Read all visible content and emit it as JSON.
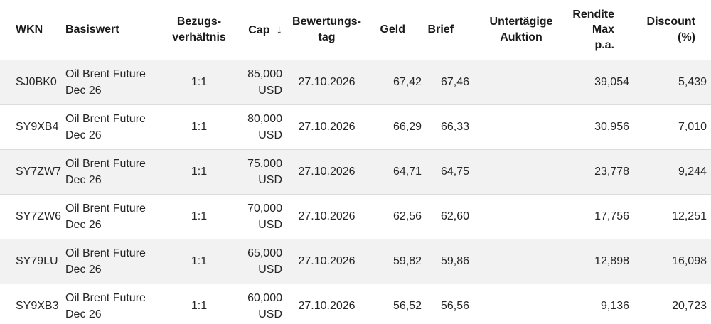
{
  "table": {
    "columns": {
      "wkn": "WKN",
      "basiswert": "Basiswert",
      "bezugsverhaeltnis": "Bezugs-\nverhältnis",
      "cap": "Cap",
      "bewertungstag": "Bewertungs-\ntag",
      "geld": "Geld",
      "brief": "Brief",
      "untertaegige_auktion": "Untertägige\nAuktion",
      "rendite_max_pa": "Rendite\nMax\np.a.",
      "discount_pct": "Discount\n(%)"
    },
    "sort": {
      "column": "Cap",
      "direction": "descending",
      "icon": "↓"
    },
    "rows": [
      {
        "wkn": "SJ0BK0",
        "basiswert": "Oil Brent Future\nDec 26",
        "bezugsverhaeltnis": "1:1",
        "cap": "85,000\nUSD",
        "bewertungstag": "27.10.2026",
        "geld": "67,42",
        "brief": "67,46",
        "untertaegige_auktion": "",
        "rendite_max_pa": "39,054",
        "discount_pct": "5,439"
      },
      {
        "wkn": "SY9XB4",
        "basiswert": "Oil Brent Future\nDec 26",
        "bezugsverhaeltnis": "1:1",
        "cap": "80,000\nUSD",
        "bewertungstag": "27.10.2026",
        "geld": "66,29",
        "brief": "66,33",
        "untertaegige_auktion": "",
        "rendite_max_pa": "30,956",
        "discount_pct": "7,010"
      },
      {
        "wkn": "SY7ZW7",
        "basiswert": "Oil Brent Future\nDec 26",
        "bezugsverhaeltnis": "1:1",
        "cap": "75,000\nUSD",
        "bewertungstag": "27.10.2026",
        "geld": "64,71",
        "brief": "64,75",
        "untertaegige_auktion": "",
        "rendite_max_pa": "23,778",
        "discount_pct": "9,244"
      },
      {
        "wkn": "SY7ZW6",
        "basiswert": "Oil Brent Future\nDec 26",
        "bezugsverhaeltnis": "1:1",
        "cap": "70,000\nUSD",
        "bewertungstag": "27.10.2026",
        "geld": "62,56",
        "brief": "62,60",
        "untertaegige_auktion": "",
        "rendite_max_pa": "17,756",
        "discount_pct": "12,251"
      },
      {
        "wkn": "SY79LU",
        "basiswert": "Oil Brent Future\nDec 26",
        "bezugsverhaeltnis": "1:1",
        "cap": "65,000\nUSD",
        "bewertungstag": "27.10.2026",
        "geld": "59,82",
        "brief": "59,86",
        "untertaegige_auktion": "",
        "rendite_max_pa": "12,898",
        "discount_pct": "16,098"
      },
      {
        "wkn": "SY9XB3",
        "basiswert": "Oil Brent Future\nDec 26",
        "bezugsverhaeltnis": "1:1",
        "cap": "60,000\nUSD",
        "bewertungstag": "27.10.2026",
        "geld": "56,52",
        "brief": "56,56",
        "untertaegige_auktion": "",
        "rendite_max_pa": "9,136",
        "discount_pct": "20,723"
      }
    ]
  },
  "colors": {
    "row_stripe": "#f2f2f2",
    "row_border": "#dcdcdc",
    "header_text": "#1a1a1a",
    "cell_text": "#262626",
    "background": "#ffffff"
  }
}
